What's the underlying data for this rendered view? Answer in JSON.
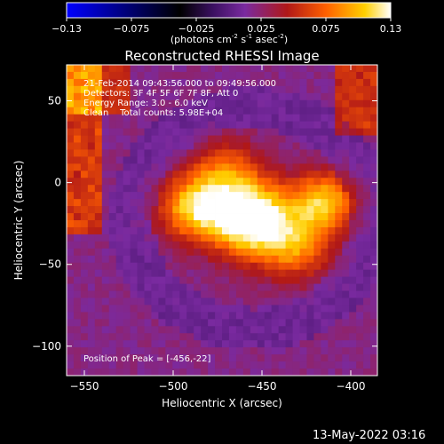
{
  "colorbar": {
    "ticks": [
      "-0.13",
      "-0.075",
      "-0.025",
      "0.025",
      "0.075",
      "0.13"
    ],
    "units_main": "(photons cm",
    "units_exp1": "-2",
    "units_mid1": " s",
    "units_exp2": "-1",
    "units_mid2": " asec",
    "units_exp3": "-2",
    "units_end": ")",
    "colors": [
      "#0000ff",
      "#000000",
      "#3a1060",
      "#7a2aa0",
      "#b01818",
      "#ff6000",
      "#ffd000",
      "#ffffff"
    ]
  },
  "chart_data": {
    "type": "heatmap",
    "title": "Reconstructed RHESSI Image",
    "xlabel": "Heliocentric X (arcsec)",
    "ylabel": "Heliocentric Y (arcsec)",
    "xlim": [
      -560,
      -385
    ],
    "ylim": [
      -118,
      72
    ],
    "x_ticks": [
      -550,
      -500,
      -450,
      -400
    ],
    "y_ticks": [
      50,
      0,
      -50,
      -100
    ],
    "x_tick_labels": [
      "−550",
      "−500",
      "−450",
      "−400"
    ],
    "y_tick_labels": [
      "50",
      "0",
      "−50",
      "−100"
    ],
    "value_range": [
      -0.13,
      0.13
    ],
    "peak_position": [
      -456,
      -22
    ],
    "sources": [
      {
        "x": -456,
        "y": -22,
        "amplitude": 0.13,
        "sigma": 16
      },
      {
        "x": -488,
        "y": -15,
        "amplitude": 0.09,
        "sigma": 14
      },
      {
        "x": -415,
        "y": -12,
        "amplitude": 0.085,
        "sigma": 13
      },
      {
        "x": -430,
        "y": -40,
        "amplitude": 0.06,
        "sigma": 14
      },
      {
        "x": -470,
        "y": 8,
        "amplitude": 0.05,
        "sigma": 13
      }
    ],
    "background_edges": [
      "top-left",
      "left",
      "top-right"
    ],
    "annotations": [
      "21-Feb-2014 09:43:56.000 to 09:49:56.000",
      "Detectors: 3F 4F 5F 6F 7F 8F, Att 0",
      "Energy Range: 3.0 - 6.0 keV",
      "Clean    Total counts: 5.98E+04"
    ],
    "peak_label": "Position of Peak = [-456,-22]"
  },
  "footer": {
    "timestamp": "13-May-2022 03:16"
  }
}
